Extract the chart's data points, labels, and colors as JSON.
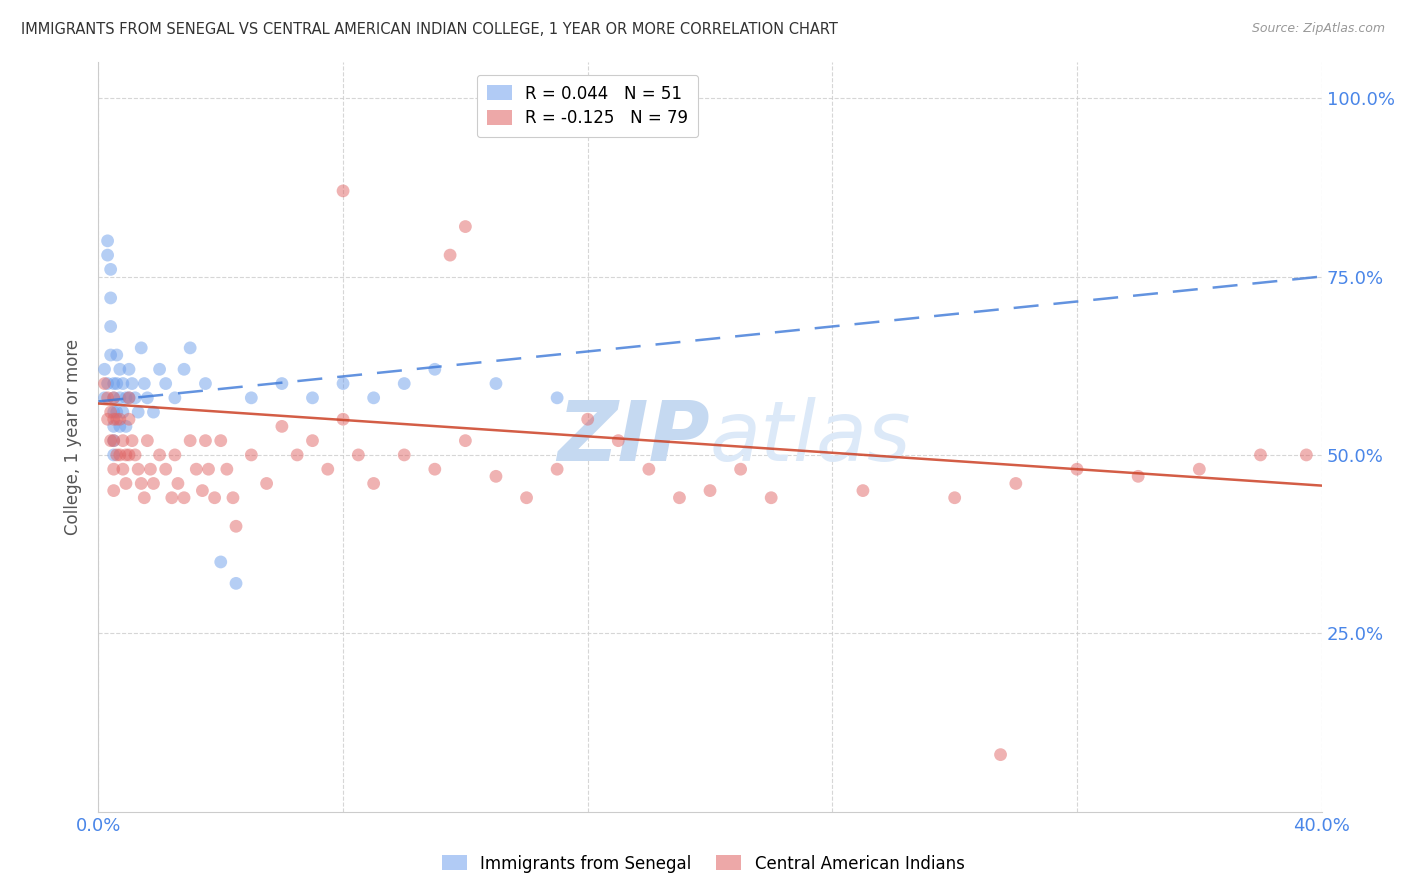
{
  "title": "IMMIGRANTS FROM SENEGAL VS CENTRAL AMERICAN INDIAN COLLEGE, 1 YEAR OR MORE CORRELATION CHART",
  "source": "Source: ZipAtlas.com",
  "ylabel": "College, 1 year or more",
  "ytick_labels": [
    "100.0%",
    "75.0%",
    "50.0%",
    "25.0%"
  ],
  "ytick_values": [
    1.0,
    0.75,
    0.5,
    0.25
  ],
  "xlim": [
    0.0,
    0.4
  ],
  "ylim": [
    0.0,
    1.05
  ],
  "legend1_label": "R = 0.044   N = 51",
  "legend2_label": "R = -0.125   N = 79",
  "legend1_color": "#a4c2f4",
  "legend2_color": "#ea9999",
  "scatter1_color": "#6d9eeb",
  "scatter2_color": "#e06666",
  "trendline1_color": "#3c78d8",
  "trendline2_color": "#cc4125",
  "watermark_zip": "ZIP",
  "watermark_atlas": "atlas",
  "watermark_color": "#d6e4f7",
  "background_color": "#ffffff",
  "grid_color": "#cccccc",
  "axis_label_color": "#4a86e8",
  "title_color": "#333333",
  "blue_intercept": 0.575,
  "blue_slope": 0.4375,
  "pink_intercept": 0.572,
  "pink_slope": -0.2875,
  "scatter1_x": [
    0.002,
    0.002,
    0.003,
    0.003,
    0.003,
    0.004,
    0.004,
    0.004,
    0.004,
    0.005,
    0.005,
    0.005,
    0.005,
    0.005,
    0.005,
    0.006,
    0.006,
    0.006,
    0.007,
    0.007,
    0.007,
    0.008,
    0.008,
    0.009,
    0.009,
    0.01,
    0.01,
    0.011,
    0.012,
    0.013,
    0.014,
    0.015,
    0.016,
    0.018,
    0.02,
    0.022,
    0.025,
    0.028,
    0.03,
    0.035,
    0.04,
    0.045,
    0.05,
    0.06,
    0.07,
    0.08,
    0.09,
    0.1,
    0.11,
    0.13,
    0.15
  ],
  "scatter1_y": [
    0.62,
    0.58,
    0.8,
    0.78,
    0.6,
    0.76,
    0.72,
    0.68,
    0.64,
    0.6,
    0.58,
    0.56,
    0.54,
    0.52,
    0.5,
    0.64,
    0.6,
    0.56,
    0.62,
    0.58,
    0.54,
    0.6,
    0.56,
    0.58,
    0.54,
    0.62,
    0.58,
    0.6,
    0.58,
    0.56,
    0.65,
    0.6,
    0.58,
    0.56,
    0.62,
    0.6,
    0.58,
    0.62,
    0.65,
    0.6,
    0.35,
    0.32,
    0.58,
    0.6,
    0.58,
    0.6,
    0.58,
    0.6,
    0.62,
    0.6,
    0.58
  ],
  "scatter2_x": [
    0.002,
    0.003,
    0.003,
    0.004,
    0.004,
    0.005,
    0.005,
    0.005,
    0.005,
    0.005,
    0.006,
    0.006,
    0.007,
    0.007,
    0.008,
    0.008,
    0.009,
    0.009,
    0.01,
    0.01,
    0.01,
    0.011,
    0.012,
    0.013,
    0.014,
    0.015,
    0.016,
    0.017,
    0.018,
    0.02,
    0.022,
    0.024,
    0.025,
    0.026,
    0.028,
    0.03,
    0.032,
    0.034,
    0.035,
    0.036,
    0.038,
    0.04,
    0.042,
    0.044,
    0.045,
    0.05,
    0.055,
    0.06,
    0.065,
    0.07,
    0.075,
    0.08,
    0.085,
    0.09,
    0.1,
    0.11,
    0.12,
    0.13,
    0.14,
    0.15,
    0.16,
    0.17,
    0.18,
    0.19,
    0.2,
    0.21,
    0.22,
    0.25,
    0.28,
    0.3,
    0.32,
    0.34,
    0.36,
    0.38,
    0.395,
    0.08,
    0.12,
    0.115,
    0.295
  ],
  "scatter2_y": [
    0.6,
    0.58,
    0.55,
    0.56,
    0.52,
    0.58,
    0.55,
    0.52,
    0.48,
    0.45,
    0.55,
    0.5,
    0.55,
    0.5,
    0.52,
    0.48,
    0.5,
    0.46,
    0.58,
    0.55,
    0.5,
    0.52,
    0.5,
    0.48,
    0.46,
    0.44,
    0.52,
    0.48,
    0.46,
    0.5,
    0.48,
    0.44,
    0.5,
    0.46,
    0.44,
    0.52,
    0.48,
    0.45,
    0.52,
    0.48,
    0.44,
    0.52,
    0.48,
    0.44,
    0.4,
    0.5,
    0.46,
    0.54,
    0.5,
    0.52,
    0.48,
    0.55,
    0.5,
    0.46,
    0.5,
    0.48,
    0.52,
    0.47,
    0.44,
    0.48,
    0.55,
    0.52,
    0.48,
    0.44,
    0.45,
    0.48,
    0.44,
    0.45,
    0.44,
    0.46,
    0.48,
    0.47,
    0.48,
    0.5,
    0.5,
    0.87,
    0.82,
    0.78,
    0.08
  ]
}
